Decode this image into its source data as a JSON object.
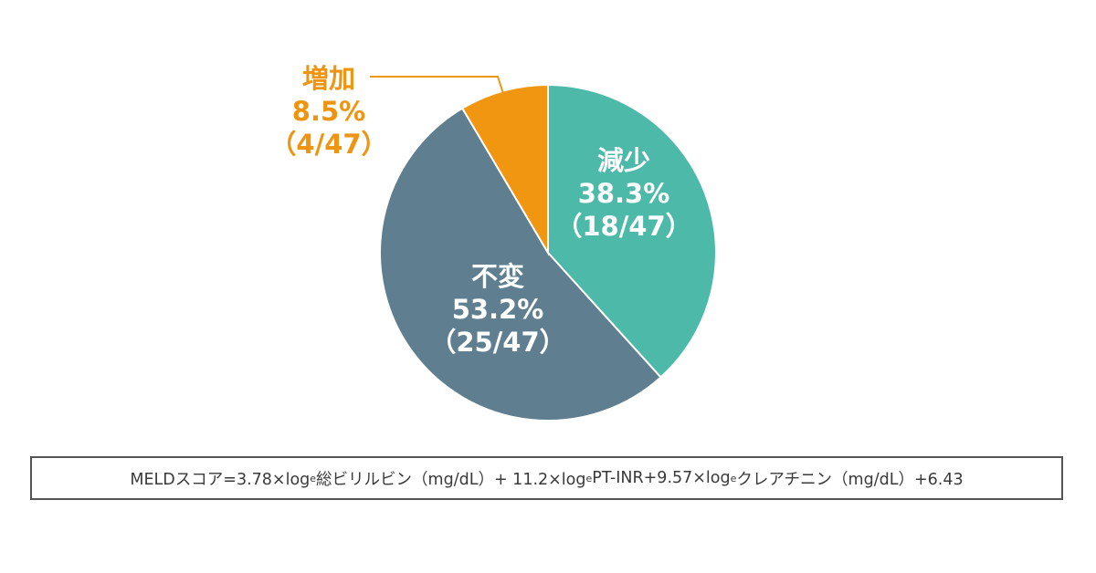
{
  "chart_data": {
    "type": "pie",
    "total": 47,
    "start_angle_deg": 0,
    "direction": "clockwise",
    "slices": [
      {
        "name": "減少",
        "value": 18,
        "percent": "38.3%",
        "count": "（18/47）",
        "color": "#4dbaa9",
        "label_color": "#ffffff"
      },
      {
        "name": "不変",
        "value": 25,
        "percent": "53.2%",
        "count": "（25/47）",
        "color": "#5f7e8f",
        "label_color": "#ffffff"
      },
      {
        "name": "増加",
        "value": 4,
        "percent": "8.5%",
        "count": "（4/47）",
        "color": "#f09611",
        "label_color": "#ee9410"
      }
    ]
  },
  "formula": {
    "part1": "MELDスコア=3.78×log",
    "sub1": "e",
    "part2": "総ビリルビン（mg/dL）+ 11.2×log",
    "sub2": "e",
    "part3": " PT-INR+9.57×log",
    "sub3": "e",
    "part4": "クレアチニン（mg/dL）+6.43"
  }
}
